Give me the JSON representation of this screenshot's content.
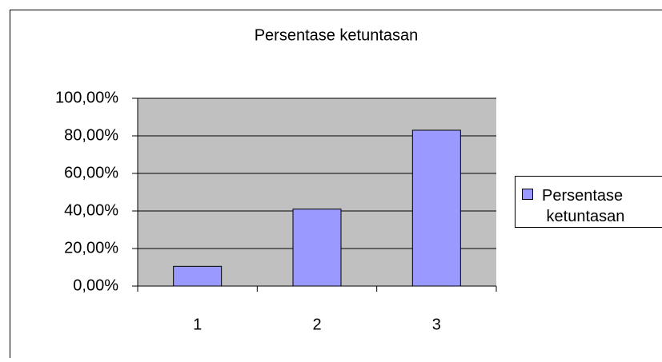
{
  "chart_data": {
    "type": "bar",
    "title": "Persentase ketuntasan",
    "categories": [
      "1",
      "2",
      "3"
    ],
    "series": [
      {
        "name": "Persentase ketuntasan",
        "color": "#9999ff",
        "values": [
          10.5,
          41,
          83
        ]
      }
    ],
    "ylim": [
      0,
      100
    ],
    "yticks": [
      {
        "value": 0,
        "label": "0,00%"
      },
      {
        "value": 20,
        "label": "20,00%"
      },
      {
        "value": 40,
        "label": "40,00%"
      },
      {
        "value": 60,
        "label": "60,00%"
      },
      {
        "value": 80,
        "label": "80,00%"
      },
      {
        "value": 100,
        "label": "100,00%"
      }
    ],
    "grid": true,
    "legend": "right"
  }
}
